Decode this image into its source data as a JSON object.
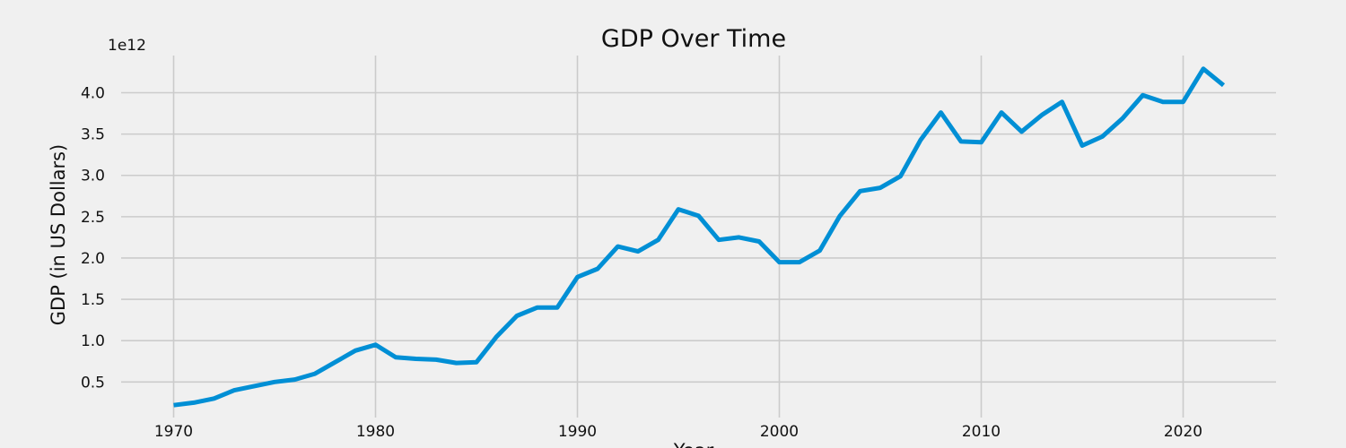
{
  "chart_data": {
    "type": "line",
    "title": "GDP Over Time",
    "xlabel": "Year",
    "ylabel": "GDP (in US Dollars)",
    "y_offset_label": "1e12",
    "xlim": [
      1967.4,
      2024.6
    ],
    "ylim": [
      0.07,
      4.45
    ],
    "x_ticks": [
      1970,
      1980,
      1990,
      2000,
      2010,
      2020
    ],
    "y_ticks": [
      0.5,
      1.0,
      1.5,
      2.0,
      2.5,
      3.0,
      3.5,
      4.0
    ],
    "y_tick_labels": [
      "0.5",
      "1.0",
      "1.5",
      "2.0",
      "2.5",
      "3.0",
      "3.5",
      "4.0"
    ],
    "grid": true,
    "line_color": "#008fd5",
    "background": "#f0f0f0",
    "series": [
      {
        "x": [
          1970,
          1971,
          1972,
          1973,
          1974,
          1975,
          1976,
          1977,
          1978,
          1979,
          1980,
          1981,
          1982,
          1983,
          1984,
          1985,
          1986,
          1987,
          1988,
          1989,
          1990,
          1991,
          1992,
          1993,
          1994,
          1995,
          1996,
          1997,
          1998,
          1999,
          2000,
          2001,
          2002,
          2003,
          2004,
          2005,
          2006,
          2007,
          2008,
          2009,
          2010,
          2011,
          2012,
          2013,
          2014,
          2015,
          2016,
          2017,
          2018,
          2019,
          2020,
          2021,
          2022
        ],
        "values": [
          0.22,
          0.25,
          0.3,
          0.4,
          0.45,
          0.5,
          0.53,
          0.6,
          0.74,
          0.88,
          0.95,
          0.8,
          0.78,
          0.77,
          0.73,
          0.74,
          1.05,
          1.3,
          1.4,
          1.4,
          1.77,
          1.87,
          2.14,
          2.08,
          2.22,
          2.59,
          2.51,
          2.22,
          2.25,
          2.2,
          1.95,
          1.95,
          2.09,
          2.51,
          2.81,
          2.85,
          2.99,
          3.43,
          3.76,
          3.41,
          3.4,
          3.76,
          3.53,
          3.73,
          3.89,
          3.36,
          3.47,
          3.69,
          3.97,
          3.89,
          3.89,
          4.29,
          4.09
        ]
      }
    ]
  }
}
